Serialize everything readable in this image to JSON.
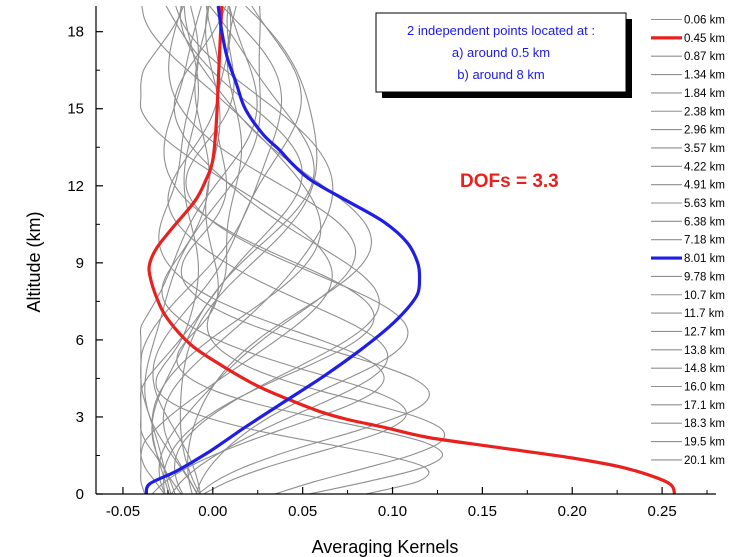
{
  "chart_data": {
    "type": "line",
    "xlabel": "Averaging Kernels",
    "ylabel": "Altitude (km)",
    "xlim": [
      -0.065,
      0.28
    ],
    "ylim": [
      0,
      19
    ],
    "xticks": [
      -0.05,
      0.0,
      0.05,
      0.1,
      0.15,
      0.2,
      0.25
    ],
    "xtick_labels": [
      "-0.05",
      "0.00",
      "0.05",
      "0.10",
      "0.15",
      "0.20",
      "0.25"
    ],
    "yticks": [
      0,
      3,
      6,
      9,
      12,
      15,
      18
    ],
    "ytick_labels": [
      "0",
      "3",
      "6",
      "9",
      "12",
      "15",
      "18"
    ],
    "grid": false,
    "legend": {
      "placement": "right",
      "entries": [
        "0.06 km",
        "0.45 km",
        "0.87 km",
        "1.34 km",
        "1.84 km",
        "2.38 km",
        "2.96 km",
        "3.57 km",
        "4.22 km",
        "4.91 km",
        "5.63 km",
        "6.38 km",
        "7.18 km",
        "8.01 km",
        "9.78 km",
        "10.7 km",
        "11.7 km",
        "12.7 km",
        "13.8 km",
        "14.8 km",
        "16.0 km",
        "17.1 km",
        "18.3 km",
        "19.5 km",
        "20.1 km"
      ],
      "highlight": {
        "0.45 km": "#e8211e",
        "8.01 km": "#1e1ee6"
      }
    },
    "annotations": {
      "box_lines": [
        "2 independent points located at :",
        "a) around 0.5 km",
        "b) around 8 km"
      ],
      "dofs": "DOFs = 3.3"
    },
    "series": [
      {
        "name": "0.45 km",
        "color": "#e8211e",
        "emphasis": true,
        "x": [
          0.257,
          0.253,
          0.23,
          0.2,
          0.16,
          0.12,
          0.095,
          0.075,
          0.06,
          0.045,
          0.025,
          0.005,
          -0.012,
          -0.025,
          -0.031,
          -0.035,
          -0.035,
          -0.031,
          -0.022,
          -0.01,
          -0.004,
          0.0,
          0.002,
          0.003,
          0.004,
          0.005
        ],
        "y": [
          0.0,
          0.45,
          1.0,
          1.4,
          1.8,
          2.2,
          2.6,
          2.9,
          3.2,
          3.6,
          4.2,
          5.0,
          5.8,
          6.8,
          7.6,
          8.5,
          9.0,
          9.6,
          10.4,
          11.4,
          12.2,
          13.0,
          14.5,
          16.0,
          17.5,
          19.0
        ]
      },
      {
        "name": "8.01 km",
        "color": "#1e1ee6",
        "emphasis": true,
        "x": [
          -0.037,
          -0.035,
          -0.02,
          -0.003,
          0.018,
          0.04,
          0.062,
          0.082,
          0.098,
          0.108,
          0.114,
          0.115,
          0.114,
          0.108,
          0.095,
          0.075,
          0.055,
          0.045,
          0.037,
          0.028,
          0.018,
          0.013,
          0.008,
          0.005,
          0.003
        ],
        "y": [
          0.0,
          0.4,
          0.9,
          1.6,
          2.6,
          3.6,
          4.6,
          5.6,
          6.5,
          7.2,
          7.8,
          8.4,
          9.0,
          9.8,
          10.6,
          11.4,
          12.2,
          12.8,
          13.4,
          14.0,
          15.0,
          16.0,
          17.0,
          18.0,
          19.0
        ]
      }
    ]
  }
}
